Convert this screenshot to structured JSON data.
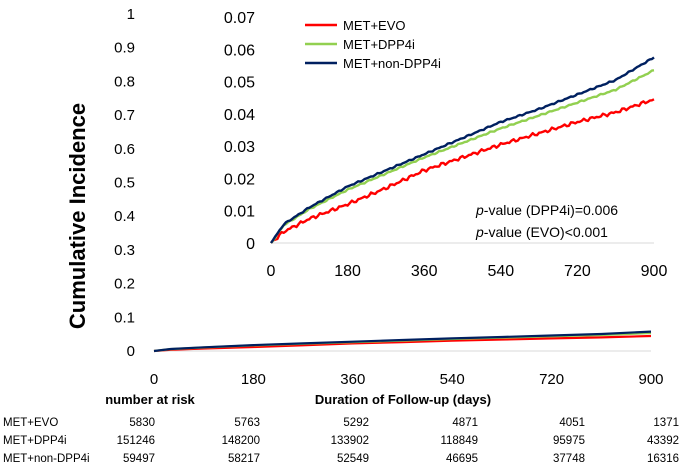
{
  "chart_data": {
    "type": "line",
    "ylabel": "Cumulative Incidence",
    "xlabel": "Duration of Follow-up (days)",
    "main": {
      "xlim": [
        0,
        900
      ],
      "ylim": [
        0,
        1
      ],
      "x_ticks": [
        0,
        180,
        360,
        540,
        720,
        900
      ],
      "y_ticks": [
        0,
        0.1,
        0.2,
        0.3,
        0.4,
        0.5,
        0.6,
        0.7,
        0.8,
        0.9,
        1
      ]
    },
    "inset": {
      "xlim": [
        0,
        900
      ],
      "ylim": [
        0,
        0.07
      ],
      "x_ticks": [
        0,
        180,
        360,
        540,
        720,
        900
      ],
      "y_ticks": [
        0,
        0.01,
        0.02,
        0.03,
        0.04,
        0.05,
        0.06,
        0.07
      ]
    },
    "x": [
      0,
      30,
      90,
      180,
      270,
      360,
      450,
      540,
      630,
      720,
      810,
      900
    ],
    "series": [
      {
        "name": "MET+EVO",
        "color": "#ff0000",
        "values": [
          0,
          0.0035,
          0.0075,
          0.012,
          0.017,
          0.0225,
          0.0265,
          0.0305,
          0.034,
          0.0375,
          0.0405,
          0.0445
        ]
      },
      {
        "name": "MET+DPP4i",
        "color": "#92d050",
        "values": [
          0,
          0.0055,
          0.0105,
          0.0165,
          0.0215,
          0.0265,
          0.031,
          0.0355,
          0.0395,
          0.0435,
          0.0475,
          0.0535
        ]
      },
      {
        "name": "MET+non-DPP4i",
        "color": "#002060",
        "values": [
          0,
          0.0058,
          0.011,
          0.0175,
          0.0225,
          0.0275,
          0.0325,
          0.0375,
          0.0415,
          0.046,
          0.0505,
          0.0575
        ]
      }
    ],
    "annotations": {
      "p_dpp4i_prefix": "p",
      "p_dpp4i_rest": "-value (DPP4i)=0.006",
      "p_evo_prefix": "p",
      "p_evo_rest": "-value (EVO)<0.001"
    },
    "risk_table": {
      "title": "number at risk",
      "rows": [
        {
          "label": "MET+EVO",
          "values": [
            "5830",
            "5763",
            "5292",
            "4871",
            "4051",
            "1371"
          ]
        },
        {
          "label": "MET+DPP4i",
          "values": [
            "151246",
            "148200",
            "133902",
            "118849",
            "95975",
            "43392"
          ]
        },
        {
          "label": "MET+non-DPP4i",
          "values": [
            "59497",
            "58217",
            "52549",
            "46695",
            "37748",
            "16316"
          ]
        }
      ]
    },
    "legend_placement": "top-left of inset",
    "grid": false
  }
}
